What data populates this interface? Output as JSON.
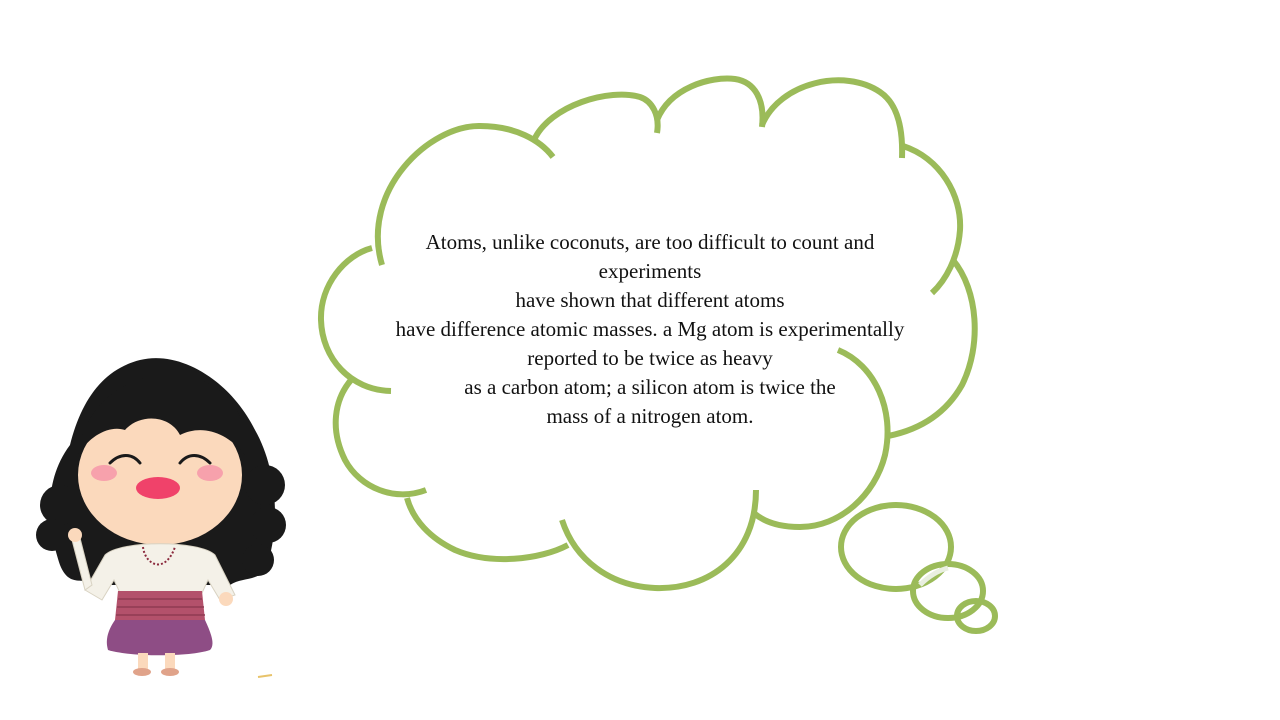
{
  "slide": {
    "thought_bubble": {
      "lines": [
        "Atoms, unlike coconuts, are too difficult to count and",
        "experiments",
        "have shown that different atoms",
        "have difference atomic masses. a Mg atom is experimentally",
        "reported to be twice as heavy",
        "as a carbon atom; a silicon atom is twice the",
        "mass of a nitrogen atom."
      ]
    },
    "colors": {
      "cloud_outline": "#9bbb59",
      "hair": "#1a1a1a",
      "skin": "#fbd9bc",
      "blush": "#f7a1ac",
      "mouth": "#f0426a",
      "blouse": "#f4f1e8",
      "skirt_band": "#b3516b",
      "skirt": "#8e4d85"
    },
    "icons": {
      "character": "cartoon-girl-icon"
    }
  }
}
